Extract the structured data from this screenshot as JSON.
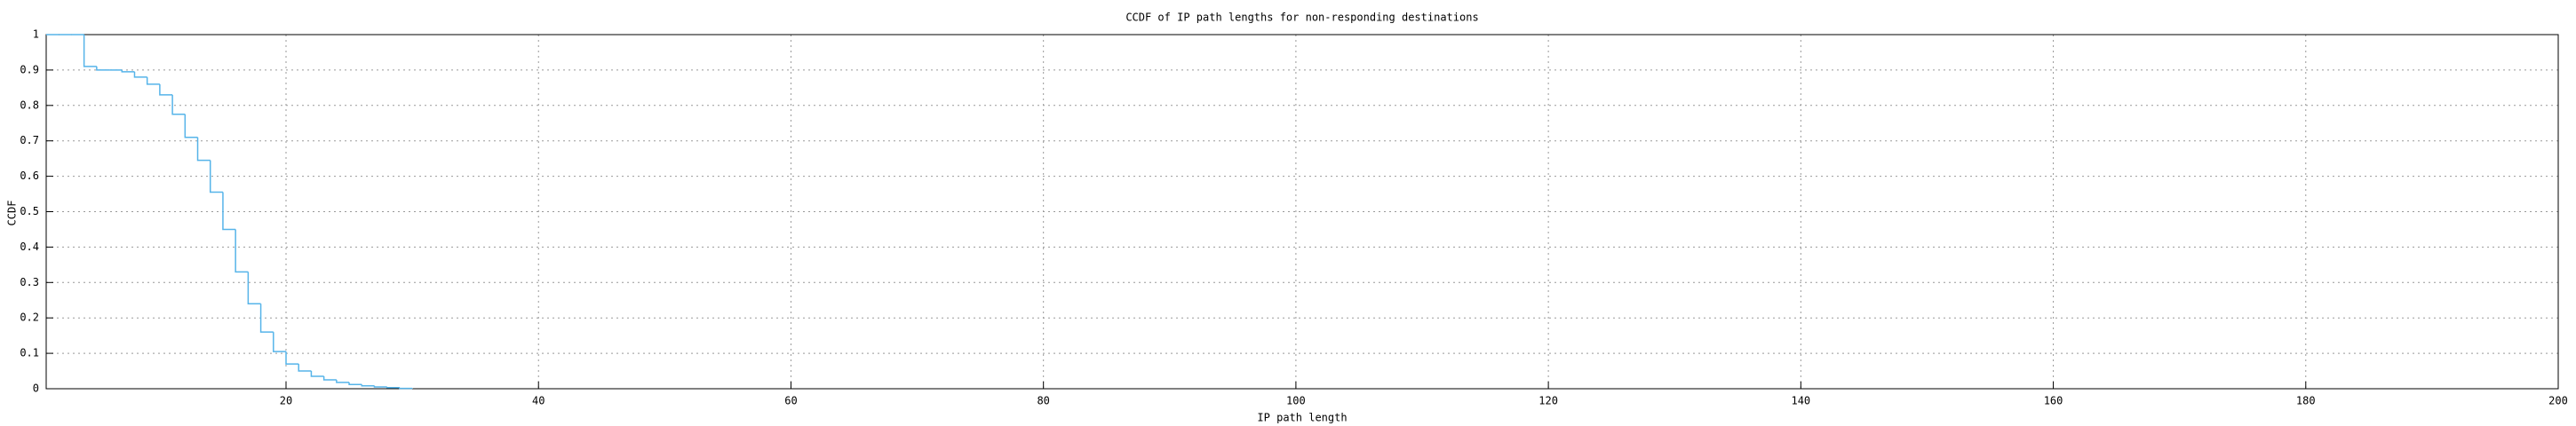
{
  "chart_data": {
    "type": "step",
    "title": "CCDF of IP path lengths for non-responding destinations",
    "x_label": "IP path length",
    "y_label": "CCDF",
    "x": [
      1,
      2,
      3,
      4,
      5,
      6,
      7,
      8,
      9,
      10,
      11,
      12,
      13,
      14,
      15,
      16,
      17,
      18,
      19,
      20,
      21,
      22,
      23,
      24,
      25,
      26,
      27,
      28,
      29,
      30
    ],
    "values": [
      1,
      1,
      1,
      0.91,
      0.9,
      0.9,
      0.895,
      0.88,
      0.86,
      0.83,
      0.775,
      0.71,
      0.645,
      0.555,
      0.45,
      0.33,
      0.24,
      0.16,
      0.105,
      0.07,
      0.05,
      0.035,
      0.025,
      0.018,
      0.012,
      0.008,
      0.005,
      0.003,
      0.001,
      0
    ],
    "color": "#56b4e9",
    "xlim": [
      1,
      200
    ],
    "xticks": [
      20,
      40,
      60,
      80,
      100,
      120,
      140,
      160,
      180,
      200
    ],
    "ylim": [
      0,
      1
    ],
    "yticks": [
      0,
      0.1,
      0.2,
      0.3,
      0.4,
      0.5,
      0.6,
      0.7,
      0.8,
      0.9,
      1
    ],
    "grid": true
  }
}
